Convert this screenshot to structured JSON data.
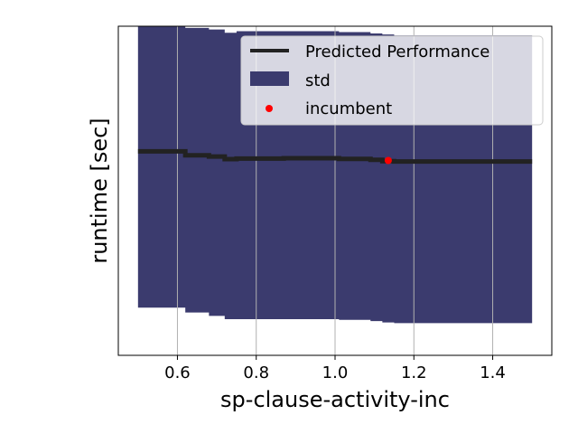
{
  "chart_data": {
    "type": "line",
    "title": "",
    "xlabel": "sp-clause-activity-inc",
    "ylabel": "runtime [sec]",
    "xlim": [
      0.45,
      1.55
    ],
    "ylim": [
      0,
      1
    ],
    "xticks": [
      0.6,
      0.8,
      1.0,
      1.2,
      1.4
    ],
    "xtick_labels": [
      "0.6",
      "0.8",
      "1.0",
      "1.2",
      "1.4"
    ],
    "yticks_shown": false,
    "grid": "vertical",
    "legend_position": "top-right",
    "colors": {
      "line": "#222222",
      "std": "#3b3b6e",
      "incumbent": "#ff0000",
      "grid": "#b0b0b0"
    },
    "series": [
      {
        "name": "Predicted Performance",
        "kind": "line",
        "x": [
          0.5,
          0.62,
          0.62,
          0.68,
          0.68,
          0.72,
          0.72,
          0.75,
          0.75,
          0.87,
          0.87,
          1.01,
          1.01,
          1.09,
          1.09,
          1.12,
          1.12,
          1.15,
          1.15,
          1.5
        ],
        "y": [
          0.62,
          0.62,
          0.608,
          0.608,
          0.604,
          0.604,
          0.596,
          0.596,
          0.598,
          0.598,
          0.599,
          0.599,
          0.597,
          0.597,
          0.594,
          0.594,
          0.59,
          0.59,
          0.589,
          0.589
        ]
      },
      {
        "name": "std",
        "kind": "band",
        "x": [
          0.5,
          0.62,
          0.62,
          0.68,
          0.68,
          0.72,
          0.72,
          0.75,
          0.75,
          0.87,
          0.87,
          1.01,
          1.01,
          1.09,
          1.09,
          1.12,
          1.12,
          1.15,
          1.15,
          1.5
        ],
        "upper": [
          1.0,
          1.0,
          0.995,
          0.995,
          0.99,
          0.99,
          0.98,
          0.98,
          0.985,
          0.985,
          0.985,
          0.985,
          0.982,
          0.982,
          0.978,
          0.978,
          0.975,
          0.975,
          0.972,
          0.972
        ],
        "lower": [
          0.145,
          0.145,
          0.13,
          0.13,
          0.12,
          0.12,
          0.11,
          0.11,
          0.11,
          0.11,
          0.11,
          0.11,
          0.108,
          0.108,
          0.104,
          0.104,
          0.1,
          0.1,
          0.098,
          0.098
        ]
      },
      {
        "name": "incumbent",
        "kind": "scatter",
        "x": [
          1.135
        ],
        "y": [
          0.592
        ]
      }
    ]
  }
}
